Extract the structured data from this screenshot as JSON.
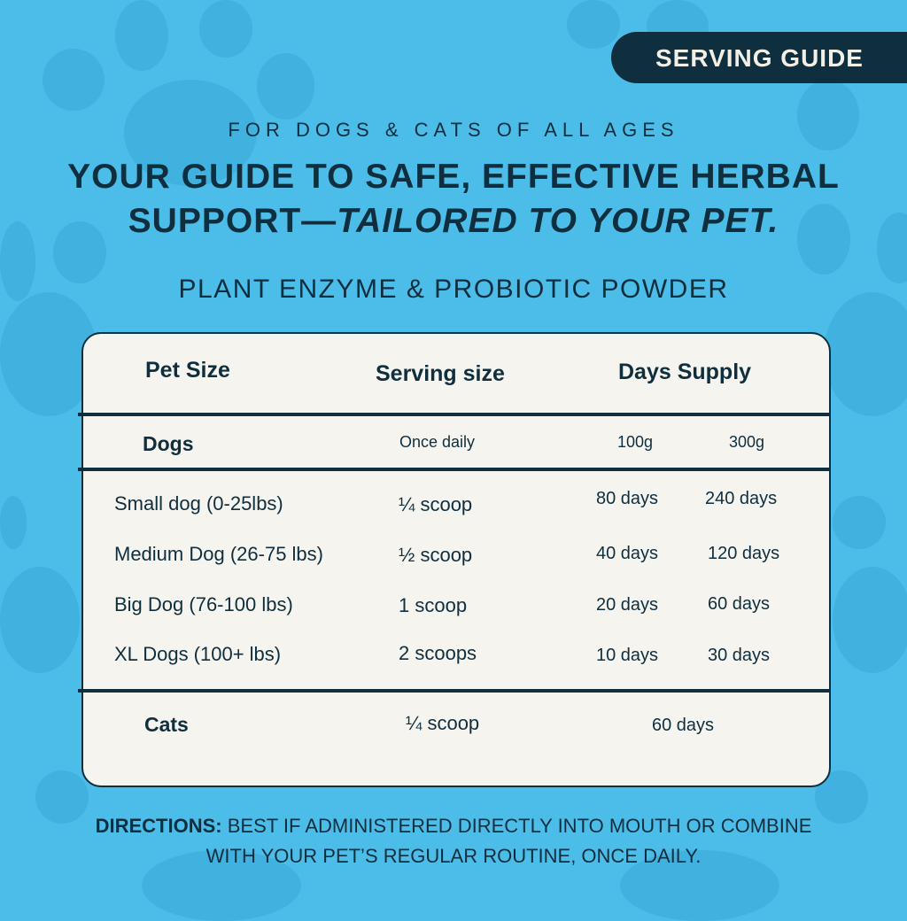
{
  "badge": {
    "label": "SERVING GUIDE"
  },
  "header": {
    "subtitle": "FOR DOGS & CATS OF ALL AGES",
    "title_line1": "YOUR GUIDE TO SAFE, EFFECTIVE HERBAL",
    "title_line2_plain": "SUPPORT—",
    "title_line2_italic": "TAILORED TO YOUR PET.",
    "product": "PLANT ENZYME & PROBIOTIC POWDER"
  },
  "table": {
    "headers": [
      "Pet Size",
      "Serving size",
      "Days Supply"
    ],
    "dogs": {
      "label": "Dogs",
      "frequency": "Once daily",
      "sizes": [
        "100g",
        "300g"
      ]
    },
    "dog_rows": [
      {
        "pet": "Small dog (0-25lbs)",
        "serving": "¼ scoop",
        "d100": "80 days",
        "d300": "240 days"
      },
      {
        "pet": "Medium Dog (26-75 lbs)",
        "serving": "½ scoop",
        "d100": "40 days",
        "d300": "120 days"
      },
      {
        "pet": "Big Dog (76-100 lbs)",
        "serving": "1 scoop",
        "d100": "20 days",
        "d300": "60 days"
      },
      {
        "pet": "XL Dogs (100+ lbs)",
        "serving": "2 scoops",
        "d100": "10 days",
        "d300": "30 days"
      }
    ],
    "cats": {
      "label": "Cats",
      "serving": "¼ scoop",
      "days": "60 days"
    }
  },
  "directions": {
    "label": "DIRECTIONS:",
    "line1": "BEST IF ADMINISTERED DIRECTLY INTO MOUTH OR COMBINE",
    "line2": "WITH YOUR PET’S REGULAR ROUTINE, ONCE DAILY."
  },
  "colors": {
    "background": "#4cbde8",
    "paw": "#41b1e0",
    "dark": "#0f2e3e",
    "card": "#f5f4ef"
  }
}
